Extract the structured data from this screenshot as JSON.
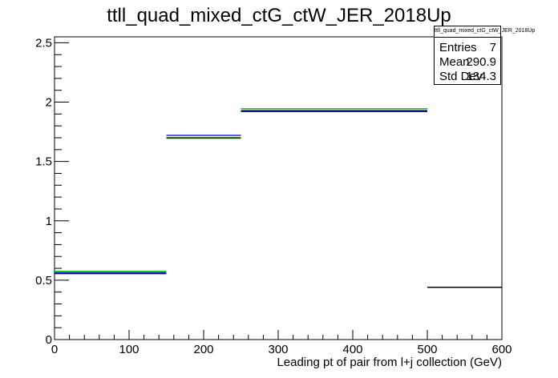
{
  "chart_data": {
    "type": "histogram",
    "title": "ttll_quad_mixed_ctG_ctW_JER_2018Up",
    "xlabel": "Leading pt of pair from l+j collection (GeV)",
    "ylabel": "",
    "xlim": [
      0,
      600
    ],
    "ylim": [
      0,
      2.55
    ],
    "x_ticks": [
      0,
      100,
      200,
      300,
      400,
      500,
      600
    ],
    "y_ticks": [
      0,
      0.5,
      1,
      1.5,
      2,
      2.5
    ],
    "x_tick_labels": [
      "0",
      "100",
      "200",
      "300",
      "400",
      "500",
      "600"
    ],
    "y_tick_labels": [
      "0",
      "0.5",
      "1",
      "1.5",
      "2",
      "2.5"
    ],
    "bin_edges": [
      0,
      150,
      250,
      500,
      600
    ],
    "series": [
      {
        "color": "#00cc00",
        "values": [
          0.575,
          1.695,
          1.945,
          0.44
        ]
      },
      {
        "color": "#0000cc",
        "values": [
          0.565,
          1.72,
          1.93,
          0.44
        ]
      },
      {
        "color": "#000000",
        "values": [
          0.555,
          1.7,
          1.92,
          0.44
        ]
      }
    ],
    "stats": {
      "name": "ttll_quad_mixed_ctG_ctW_JER_2018Up",
      "entries_label": "Entries",
      "entries": "7",
      "mean_label": "Mean",
      "mean": "290.9",
      "stddev_label": "Std Dev",
      "stddev": "134.3"
    },
    "grid": false,
    "legend": "none"
  }
}
